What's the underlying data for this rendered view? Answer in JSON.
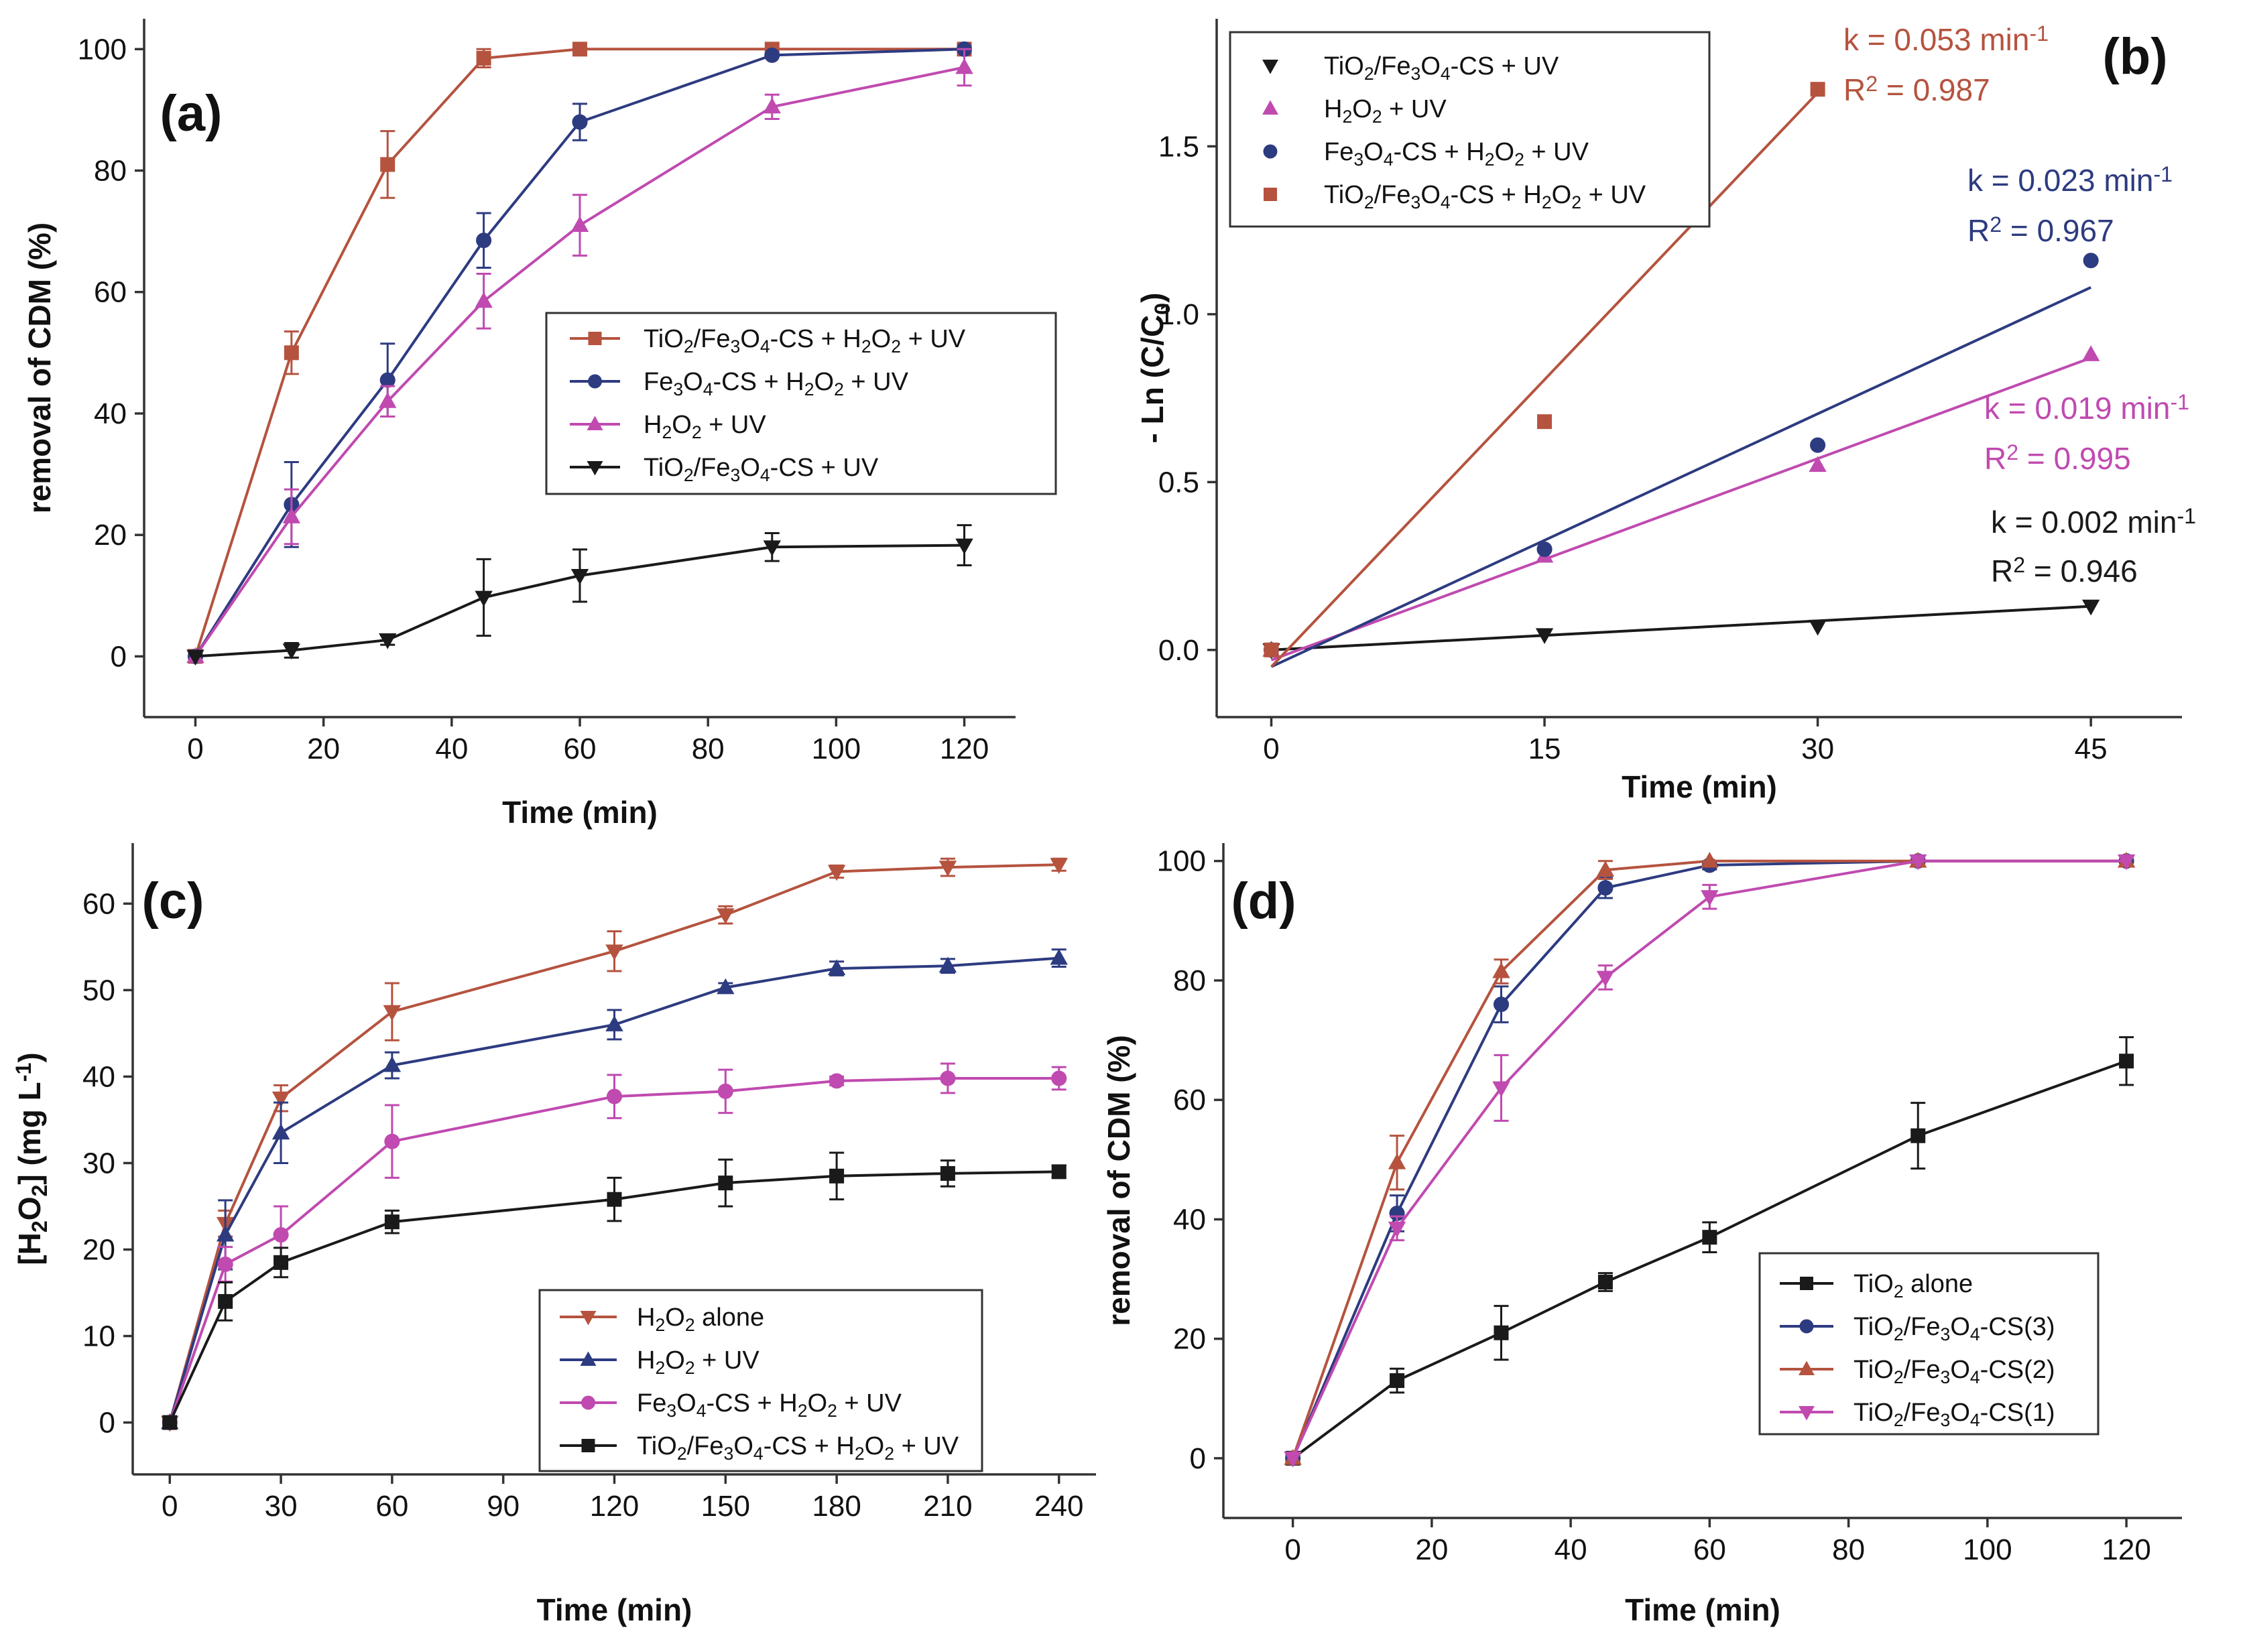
{
  "chart_data": [
    {
      "type": "line",
      "panel": "(a)",
      "xlabel": "Time (min)",
      "ylabel": "removal of CDM (%)",
      "xlim": [
        -8,
        128
      ],
      "ylim": [
        -10,
        105
      ],
      "xticks": [
        0,
        20,
        40,
        60,
        80,
        100,
        120
      ],
      "yticks": [
        0,
        20,
        40,
        60,
        80,
        100
      ],
      "legend_position": "center-right",
      "series": [
        {
          "name": "TiO₂/Fe₃O₄-CS + H₂O₂ + UV",
          "color": "#b5533f",
          "marker": "square",
          "x": [
            0,
            15,
            30,
            45,
            60,
            90,
            120
          ],
          "y": [
            0,
            50,
            81,
            98.5,
            100,
            100,
            100
          ],
          "err": [
            0,
            3.5,
            5.5,
            1.5,
            0,
            0,
            0
          ]
        },
        {
          "name": "Fe₃O₄-CS + H₂O₂ + UV",
          "color": "#2d3b80",
          "marker": "circle",
          "x": [
            0,
            15,
            30,
            45,
            60,
            90,
            120
          ],
          "y": [
            0,
            25,
            45.5,
            68.5,
            88,
            99,
            100
          ],
          "err": [
            0,
            7,
            6,
            4.5,
            3,
            0,
            0
          ]
        },
        {
          "name": "H₂O₂ + UV",
          "color": "#c04ab0",
          "marker": "triangle-up",
          "x": [
            0,
            15,
            30,
            45,
            60,
            90,
            120
          ],
          "y": [
            0,
            23,
            42,
            58.5,
            71,
            90.5,
            97
          ],
          "err": [
            0,
            4.5,
            2.5,
            4.5,
            5,
            2,
            3
          ]
        },
        {
          "name": "TiO₂/Fe₃O₄-CS + UV",
          "color": "#1a1a1a",
          "marker": "triangle-down",
          "x": [
            0,
            15,
            30,
            45,
            60,
            90,
            120
          ],
          "y": [
            0,
            1,
            2.7,
            9.7,
            13.3,
            18,
            18.3
          ],
          "err": [
            0,
            1.2,
            0.8,
            6.3,
            4.3,
            2.3,
            3.3
          ]
        }
      ]
    },
    {
      "type": "scatter",
      "panel": "(b)",
      "xlabel": "Time (min)",
      "ylabel": "- Ln (C/C₀)",
      "xlim": [
        -3,
        50
      ],
      "ylim": [
        -0.2,
        1.88
      ],
      "xticks": [
        0,
        15,
        30,
        45
      ],
      "yticks": [
        0.0,
        0.5,
        1.0,
        1.5
      ],
      "ytick_labels": [
        "0.0",
        "0.5",
        "1.0",
        "1.5"
      ],
      "legend_position": "top-left",
      "series": [
        {
          "name": "TiO₂/Fe₃O₄-CS + UV",
          "color": "#1a1a1a",
          "marker": "triangle-down",
          "x": [
            0,
            15,
            30,
            45
          ],
          "y": [
            0.0,
            0.045,
            0.07,
            0.13
          ],
          "fit": [
            [
              0,
              0.0
            ],
            [
              45,
              0.13
            ]
          ],
          "k": "k = 0.002 min⁻¹",
          "r2": "R² = 0.946"
        },
        {
          "name": "H₂O₂ + UV",
          "color": "#c04ab0",
          "marker": "triangle-up",
          "x": [
            0,
            15,
            30,
            45
          ],
          "y": [
            0.0,
            0.28,
            0.55,
            0.88
          ],
          "fit": [
            [
              0,
              -0.03
            ],
            [
              45,
              0.87
            ]
          ],
          "k": "k = 0.019 min⁻¹",
          "r2": "R² = 0.995"
        },
        {
          "name": "Fe₃O₄-CS + H₂O₂ + UV",
          "color": "#2d3b80",
          "marker": "circle",
          "x": [
            0,
            15,
            30,
            45
          ],
          "y": [
            0.0,
            0.3,
            0.61,
            1.16
          ],
          "fit": [
            [
              0,
              -0.05
            ],
            [
              45,
              1.08
            ]
          ],
          "k": "k = 0.023 min⁻¹",
          "r2": "R² = 0.967"
        },
        {
          "name": "TiO₂/Fe₃O₄-CS + H₂O₂ + UV",
          "color": "#b5533f",
          "marker": "square",
          "x": [
            0,
            15,
            30
          ],
          "y": [
            0.0,
            0.68,
            1.67
          ],
          "fit": [
            [
              0,
              -0.05
            ],
            [
              30,
              1.66
            ]
          ],
          "k": "k = 0.053 min⁻¹",
          "r2": "R² = 0.987"
        }
      ]
    },
    {
      "type": "line",
      "panel": "(c)",
      "xlabel": "Time (min)",
      "ylabel": "[H₂O₂] (mg L⁻¹)",
      "xlim": [
        -10,
        250
      ],
      "ylim": [
        -6,
        67
      ],
      "xticks": [
        0,
        30,
        60,
        90,
        120,
        150,
        180,
        210,
        240
      ],
      "yticks": [
        0,
        10,
        20,
        30,
        40,
        50,
        60
      ],
      "legend_position": "bottom-center",
      "series": [
        {
          "name": "H₂O₂ alone",
          "color": "#b5533f",
          "marker": "triangle-down",
          "x": [
            0,
            15,
            30,
            60,
            120,
            150,
            180,
            210,
            240
          ],
          "y": [
            0,
            23,
            37.5,
            47.5,
            54.5,
            58.7,
            63.7,
            64.2,
            64.5
          ],
          "err": [
            0,
            1.5,
            1.5,
            3.3,
            2.3,
            1,
            0.7,
            1,
            0.7
          ]
        },
        {
          "name": "H₂O₂ + UV",
          "color": "#2d3b80",
          "marker": "triangle-up",
          "x": [
            0,
            15,
            30,
            60,
            120,
            150,
            180,
            210,
            240
          ],
          "y": [
            0,
            21.7,
            33.5,
            41.3,
            46,
            50.3,
            52.5,
            52.8,
            53.7
          ],
          "err": [
            0,
            4,
            3.5,
            1.5,
            1.7,
            0.5,
            0.8,
            0.8,
            1
          ]
        },
        {
          "name": "Fe₃O₄-CS + H₂O₂ + UV",
          "color": "#c04ab0",
          "marker": "circle",
          "x": [
            0,
            15,
            30,
            60,
            120,
            150,
            180,
            210,
            240
          ],
          "y": [
            0,
            18.3,
            21.7,
            32.5,
            37.7,
            38.3,
            39.5,
            39.8,
            39.8
          ],
          "err": [
            0,
            2,
            3.3,
            4.2,
            2.5,
            2.5,
            0.5,
            1.7,
            1.3
          ]
        },
        {
          "name": "TiO₂/Fe₃O₄-CS + H₂O₂ + UV",
          "color": "#1a1a1a",
          "marker": "square",
          "x": [
            0,
            15,
            30,
            60,
            120,
            150,
            180,
            210,
            240
          ],
          "y": [
            0,
            14,
            18.5,
            23.2,
            25.8,
            27.7,
            28.5,
            28.8,
            29
          ],
          "err": [
            0,
            2.2,
            1.7,
            1.3,
            2.5,
            2.7,
            2.7,
            1.5,
            0.7
          ]
        }
      ]
    },
    {
      "type": "line",
      "panel": "(d)",
      "xlabel": "Time (min)",
      "ylabel": "removal of CDM (%)",
      "xlim": [
        -10,
        128
      ],
      "ylim": [
        -10,
        103
      ],
      "xticks": [
        0,
        20,
        40,
        60,
        80,
        100,
        120
      ],
      "yticks": [
        0,
        20,
        40,
        60,
        80,
        100
      ],
      "legend_position": "bottom-right",
      "series": [
        {
          "name": "TiO₂ alone",
          "color": "#1a1a1a",
          "marker": "square",
          "x": [
            0,
            15,
            30,
            45,
            60,
            90,
            120
          ],
          "y": [
            0,
            13,
            21,
            29.5,
            37,
            54,
            66.5
          ],
          "err": [
            0,
            2,
            4.5,
            1.5,
            2.5,
            5.5,
            4
          ]
        },
        {
          "name": "TiO₂/Fe₃O₄-CS(3)",
          "color": "#2d3b80",
          "marker": "circle",
          "x": [
            0,
            15,
            30,
            45,
            60,
            90,
            120
          ],
          "y": [
            0,
            41,
            76,
            95.5,
            99.3,
            100,
            100
          ],
          "err": [
            0,
            3,
            3,
            1.7,
            0.7,
            0,
            0
          ]
        },
        {
          "name": "TiO₂/Fe₃O₄-CS(2)",
          "color": "#b5533f",
          "marker": "triangle-up",
          "x": [
            0,
            15,
            30,
            45,
            60,
            90,
            120
          ],
          "y": [
            0,
            49.5,
            81.5,
            98.5,
            100,
            100,
            100
          ],
          "err": [
            0,
            4.5,
            2,
            1.5,
            0,
            0,
            0
          ]
        },
        {
          "name": "TiO₂/Fe₃O₄-CS(1)",
          "color": "#c04ab0",
          "marker": "triangle-down",
          "x": [
            0,
            15,
            30,
            45,
            60,
            90,
            120
          ],
          "y": [
            0,
            38.5,
            62,
            80.5,
            94,
            100,
            100
          ],
          "err": [
            0,
            2,
            5.5,
            2,
            2,
            0,
            0
          ]
        }
      ]
    }
  ]
}
